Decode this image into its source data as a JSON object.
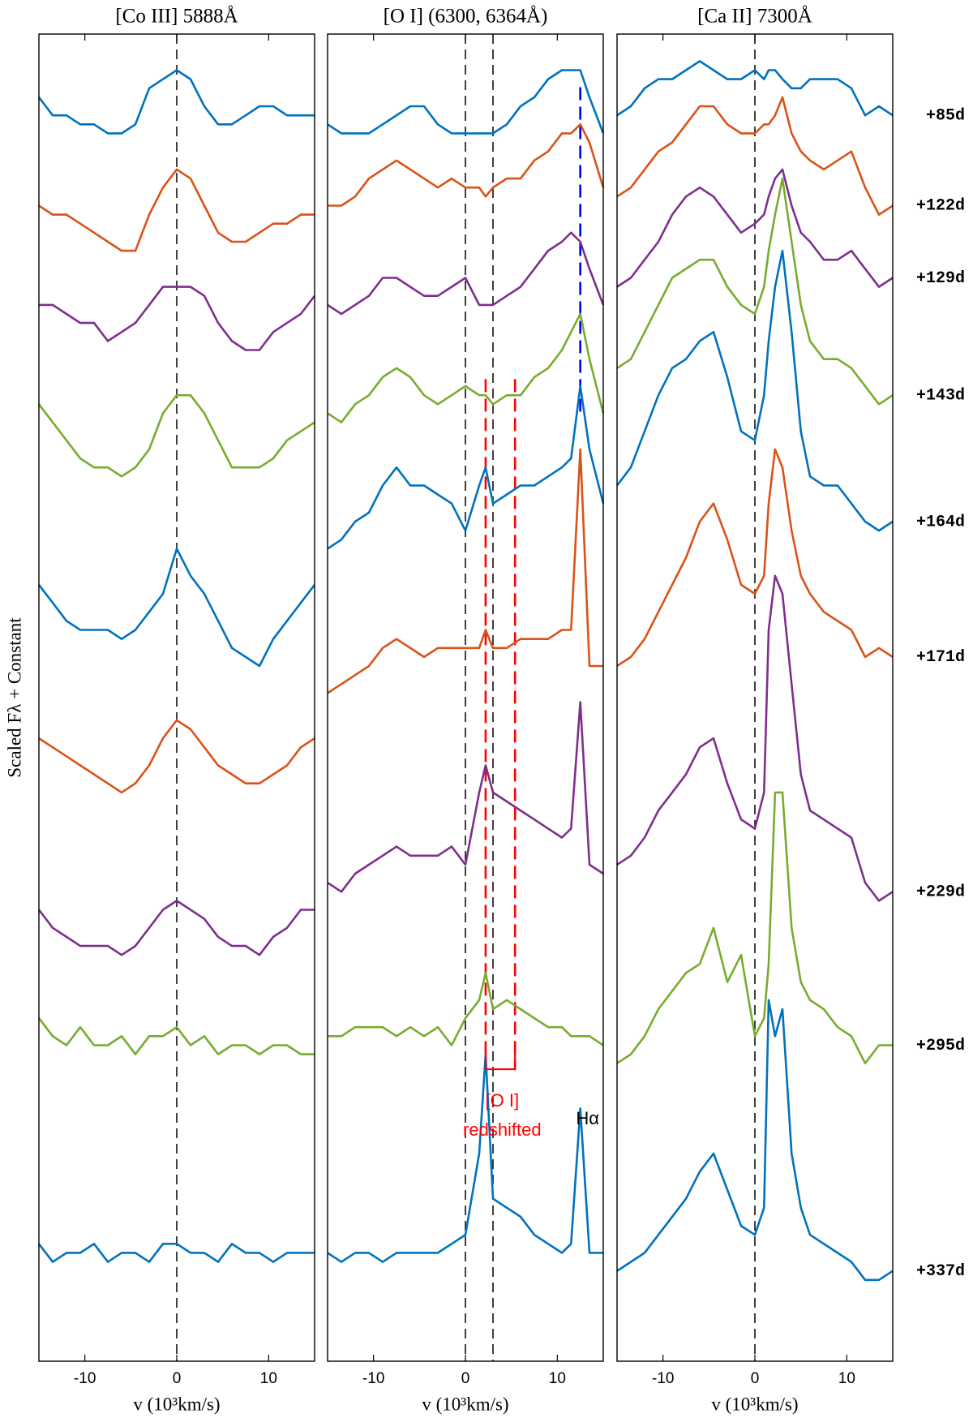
{
  "ylabel": "Scaled Fλ + Constant",
  "epochs": [
    "+85d",
    "+122d",
    "+129d",
    "+143d",
    "+164d",
    "+171d",
    "+229d",
    "+295d",
    "+337d"
  ],
  "chart_data": [
    {
      "type": "line",
      "title": "[Co III] 5888Å",
      "xlabel": "v  (10³km/s)",
      "xlim": [
        -15,
        15
      ],
      "xticks": [
        -10,
        0,
        10
      ],
      "ylim": [
        0,
        147
      ],
      "vlines": [
        {
          "x": 0,
          "color": "#000000"
        }
      ],
      "x": [
        -15,
        -13.5,
        -12,
        -10.5,
        -9,
        -7.5,
        -6,
        -4.5,
        -3,
        -1.5,
        0,
        1.5,
        3,
        4.5,
        6,
        7.5,
        9,
        10.5,
        12,
        13.5,
        15
      ],
      "series": [
        {
          "color": "#0072BD",
          "values": [
            140,
            138,
            138,
            137,
            137,
            136,
            136,
            137,
            141,
            142,
            143,
            142,
            139,
            137,
            137,
            138,
            139,
            139,
            138,
            138,
            138
          ]
        },
        {
          "color": "#D95319",
          "values": [
            128,
            127,
            127,
            126,
            125,
            124,
            123,
            123,
            127,
            130,
            132,
            131,
            128,
            125,
            124,
            124,
            125,
            126,
            126,
            127,
            127
          ]
        },
        {
          "color": "#7E2F8E",
          "values": [
            117,
            117,
            116,
            115,
            115,
            113,
            114,
            115,
            117,
            119,
            119,
            119,
            118,
            115,
            113,
            112,
            112,
            114,
            115,
            116,
            118
          ]
        },
        {
          "color": "#77AC30",
          "values": [
            106,
            104,
            102,
            100,
            99,
            99,
            98,
            99,
            101,
            105,
            107,
            107,
            105,
            102,
            99,
            99,
            99,
            100,
            102,
            103,
            104
          ]
        },
        {
          "color": "#0072BD",
          "values": [
            86,
            84,
            82,
            81,
            81,
            81,
            80,
            81,
            83,
            85,
            90,
            87,
            85,
            82,
            79,
            78,
            77,
            80,
            82,
            84,
            86
          ]
        },
        {
          "color": "#D95319",
          "values": [
            69,
            68,
            67,
            66,
            65,
            64,
            63,
            64,
            66,
            69,
            71,
            70,
            68,
            66,
            65,
            64,
            64,
            65,
            66,
            68,
            69
          ]
        },
        {
          "color": "#7E2F8E",
          "values": [
            50,
            48,
            47,
            46,
            46,
            46,
            45,
            46,
            48,
            50,
            51,
            50,
            49,
            47,
            46,
            46,
            45,
            47,
            48,
            50,
            50
          ]
        },
        {
          "color": "#77AC30",
          "values": [
            38,
            36,
            35,
            37,
            35,
            35,
            36,
            34,
            36,
            36,
            37,
            35,
            36,
            34,
            35,
            35,
            34,
            35,
            35,
            34,
            34
          ]
        },
        {
          "color": "#0072BD",
          "values": [
            13,
            11,
            12,
            12,
            13,
            11,
            12,
            12,
            11,
            13,
            13,
            12,
            12,
            11,
            13,
            12,
            12,
            11,
            12,
            12,
            12
          ]
        }
      ]
    },
    {
      "type": "line",
      "title": "[O I] (6300, 6364Å)",
      "xlabel": "v  (10³km/s)",
      "xlim": [
        -15,
        15
      ],
      "xticks": [
        -10,
        0,
        10
      ],
      "ylim": [
        0,
        147
      ],
      "vlines": [
        {
          "x": 0,
          "color": "#000000"
        },
        {
          "x": 3,
          "color": "#000000"
        },
        {
          "x": 2.2,
          "color": "#FF0000"
        },
        {
          "x": 5.4,
          "color": "#FF0000"
        },
        {
          "x": 12.5,
          "color": "#0000FF"
        }
      ],
      "annotations": [
        {
          "text": "[O I]",
          "color": "#FF0000"
        },
        {
          "text": "redshifted",
          "color": "#FF0000"
        },
        {
          "text": "Hα",
          "color": "#000000"
        }
      ],
      "x": [
        -15,
        -13.5,
        -12,
        -10.5,
        -9,
        -7.5,
        -6,
        -4.5,
        -3,
        -1.5,
        0,
        1.5,
        2.2,
        3,
        4.5,
        6,
        7.5,
        9,
        10.5,
        11.5,
        12.5,
        13.5,
        15
      ],
      "series": [
        {
          "color": "#0072BD",
          "values": [
            137,
            136,
            136,
            136,
            137,
            138,
            139,
            139,
            137,
            136,
            136,
            136,
            136,
            136,
            137,
            139,
            140,
            142,
            143,
            143,
            143,
            140,
            136
          ]
        },
        {
          "color": "#D95319",
          "values": [
            128,
            128,
            129,
            131,
            132,
            133,
            132,
            131,
            130,
            131,
            130,
            130,
            129,
            130,
            131,
            131,
            133,
            134,
            136,
            136,
            137,
            135,
            130
          ]
        },
        {
          "color": "#7E2F8E",
          "values": [
            117,
            116,
            117,
            118,
            120,
            120,
            119,
            118,
            118,
            119,
            120,
            117,
            117,
            117,
            118,
            119,
            121,
            123,
            124,
            125,
            124,
            121,
            117
          ]
        },
        {
          "color": "#77AC30",
          "values": [
            105,
            104,
            106,
            107,
            109,
            110,
            109,
            107,
            106,
            107,
            108,
            107,
            107,
            106,
            107,
            107,
            109,
            110,
            112,
            114,
            116,
            111,
            105
          ]
        },
        {
          "color": "#0072BD",
          "values": [
            90,
            91,
            93,
            94,
            97,
            99,
            97,
            97,
            96,
            95,
            92,
            97,
            99,
            95,
            96,
            97,
            97,
            98,
            99,
            100,
            108,
            101,
            95
          ]
        },
        {
          "color": "#D95319",
          "values": [
            74,
            75,
            76,
            77,
            79,
            80,
            79,
            78,
            79,
            79,
            79,
            79,
            81,
            79,
            79,
            80,
            80,
            80,
            81,
            81,
            101,
            77,
            77
          ]
        },
        {
          "color": "#7E2F8E",
          "values": [
            53,
            52,
            54,
            55,
            56,
            57,
            56,
            56,
            56,
            57,
            55,
            63,
            66,
            63,
            62,
            61,
            60,
            59,
            58,
            59,
            73,
            55,
            54
          ]
        },
        {
          "color": "#77AC30",
          "values": [
            36,
            36,
            37,
            37,
            37,
            36,
            37,
            36,
            37,
            35,
            38,
            40,
            43,
            39,
            40,
            39,
            38,
            37,
            37,
            36,
            36,
            36,
            35
          ]
        },
        {
          "color": "#0072BD",
          "values": [
            12,
            11,
            12,
            12,
            11,
            12,
            12,
            12,
            12,
            13,
            14,
            23,
            34,
            18,
            17,
            16,
            14,
            13,
            12,
            13,
            28,
            12,
            12
          ]
        }
      ]
    },
    {
      "type": "line",
      "title": "[Ca II] 7300Å",
      "xlabel": "v  (10³km/s)",
      "xlim": [
        -15,
        15
      ],
      "xticks": [
        -10,
        0,
        10
      ],
      "ylim": [
        0,
        147
      ],
      "vlines": [
        {
          "x": 0,
          "color": "#000000"
        }
      ],
      "x": [
        -15,
        -13.5,
        -12,
        -10.5,
        -9,
        -7.5,
        -6,
        -4.5,
        -3,
        -1.5,
        0,
        1,
        1.5,
        2.2,
        3,
        4,
        5,
        6,
        7.5,
        9,
        10.5,
        12,
        13.5,
        15
      ],
      "series": [
        {
          "color": "#0072BD",
          "values": [
            138,
            139,
            141,
            142,
            142,
            143,
            144,
            143,
            142,
            142,
            143,
            142,
            143,
            143,
            142,
            141,
            141,
            142,
            142,
            142,
            141,
            138,
            139,
            138
          ]
        },
        {
          "color": "#D95319",
          "values": [
            129,
            130,
            132,
            134,
            135,
            137,
            139,
            139,
            137,
            136,
            136,
            137,
            137,
            138,
            140,
            136,
            134,
            133,
            132,
            133,
            134,
            130,
            127,
            128
          ]
        },
        {
          "color": "#7E2F8E",
          "values": [
            119,
            120,
            122,
            124,
            127,
            129,
            130,
            129,
            127,
            125,
            126,
            127,
            129,
            131,
            132,
            128,
            125,
            124,
            122,
            122,
            123,
            121,
            119,
            120
          ]
        },
        {
          "color": "#77AC30",
          "values": [
            110,
            111,
            114,
            117,
            120,
            121,
            122,
            122,
            119,
            117,
            116,
            119,
            123,
            127,
            131,
            124,
            117,
            113,
            111,
            111,
            110,
            108,
            106,
            107
          ]
        },
        {
          "color": "#0072BD",
          "values": [
            97,
            99,
            103,
            107,
            110,
            111,
            113,
            114,
            109,
            103,
            102,
            107,
            113,
            119,
            123,
            114,
            103,
            98,
            97,
            97,
            95,
            93,
            92,
            93
          ]
        },
        {
          "color": "#D95319",
          "values": [
            77,
            78,
            80,
            83,
            86,
            89,
            93,
            95,
            91,
            86,
            85,
            87,
            95,
            101,
            99,
            92,
            87,
            85,
            83,
            82,
            81,
            78,
            79,
            78
          ]
        },
        {
          "color": "#7E2F8E",
          "values": [
            55,
            56,
            58,
            61,
            63,
            65,
            68,
            69,
            64,
            60,
            59,
            63,
            81,
            87,
            85,
            75,
            65,
            61,
            60,
            59,
            58,
            53,
            51,
            52
          ]
        },
        {
          "color": "#77AC30",
          "values": [
            33,
            34,
            36,
            39,
            41,
            43,
            44,
            48,
            42,
            45,
            36,
            38,
            44,
            63,
            63,
            48,
            42,
            40,
            39,
            37,
            36,
            33,
            35,
            35
          ]
        },
        {
          "color": "#0072BD",
          "values": [
            10,
            11,
            12,
            14,
            16,
            18,
            21,
            23,
            19,
            15,
            14,
            17,
            40,
            36,
            39,
            23,
            17,
            14,
            13,
            12,
            11,
            9,
            9,
            10
          ]
        }
      ]
    }
  ]
}
